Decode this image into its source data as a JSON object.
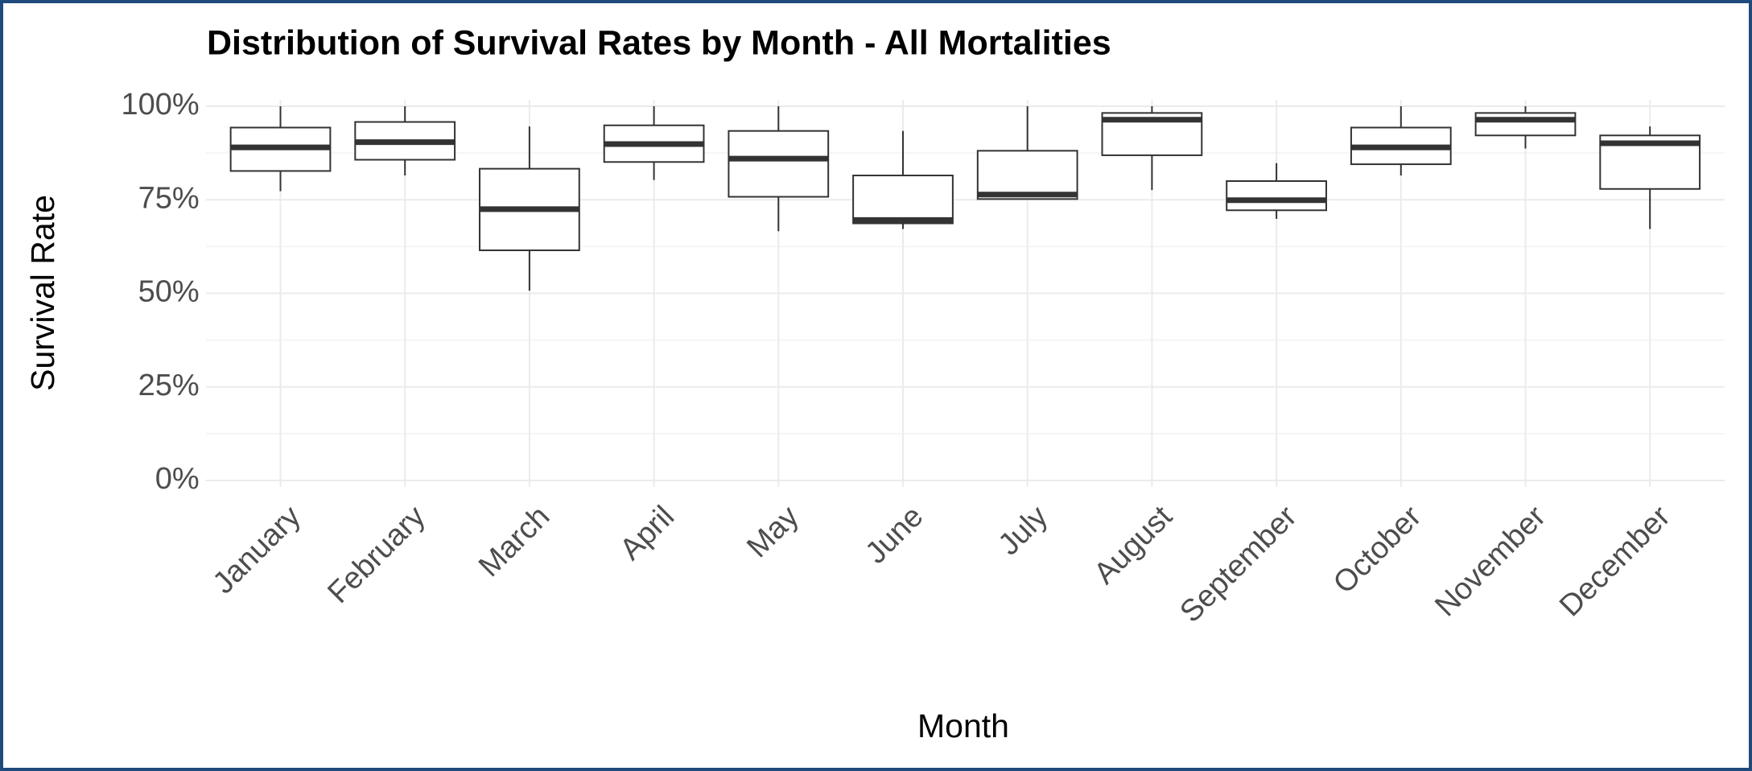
{
  "chart_data": {
    "type": "box",
    "title": "Distribution of Survival Rates by Month - All Mortalities",
    "x_label": "Month",
    "y_label": "Survival Rate",
    "categories": [
      "January",
      "February",
      "March",
      "April",
      "May",
      "June",
      "July",
      "August",
      "September",
      "October",
      "November",
      "December"
    ],
    "boxes": [
      {
        "min": 77.3,
        "q1": 82.7,
        "median": 89.0,
        "q3": 94.3,
        "max": 100
      },
      {
        "min": 81.5,
        "q1": 85.7,
        "median": 90.4,
        "q3": 95.8,
        "max": 100
      },
      {
        "min": 50.7,
        "q1": 61.5,
        "median": 72.5,
        "q3": 83.3,
        "max": 94.6
      },
      {
        "min": 80.3,
        "q1": 85.1,
        "median": 89.9,
        "q3": 94.9,
        "max": 100
      },
      {
        "min": 66.6,
        "q1": 75.8,
        "median": 86.0,
        "q3": 93.4,
        "max": 100
      },
      {
        "min": 67.2,
        "q1": 68.7,
        "median": 69.6,
        "q3": 81.5,
        "max": 93.4
      },
      {
        "min": 75.2,
        "q1": 75.2,
        "median": 76.4,
        "q3": 88.1,
        "max": 100
      },
      {
        "min": 77.6,
        "q1": 86.9,
        "median": 96.4,
        "q3": 98.2,
        "max": 100
      },
      {
        "min": 69.9,
        "q1": 72.2,
        "median": 74.9,
        "q3": 80.0,
        "max": 84.8
      },
      {
        "min": 81.5,
        "q1": 84.5,
        "median": 89.0,
        "q3": 94.3,
        "max": 100
      },
      {
        "min": 88.7,
        "q1": 92.2,
        "median": 96.4,
        "q3": 98.2,
        "max": 100
      },
      {
        "min": 67.2,
        "q1": 77.9,
        "median": 90.1,
        "q3": 92.2,
        "max": 94.6
      }
    ],
    "color": "#333333",
    "ylim": [
      0,
      100
    ],
    "yticks": [
      {
        "value": 0,
        "label": "0%"
      },
      {
        "value": 25,
        "label": "25%"
      },
      {
        "value": 50,
        "label": "50%"
      },
      {
        "value": 75,
        "label": "75%"
      },
      {
        "value": 100,
        "label": "100%"
      }
    ],
    "minor_yticks": [
      12.5,
      37.5,
      62.5,
      87.5
    ],
    "grid": true
  }
}
